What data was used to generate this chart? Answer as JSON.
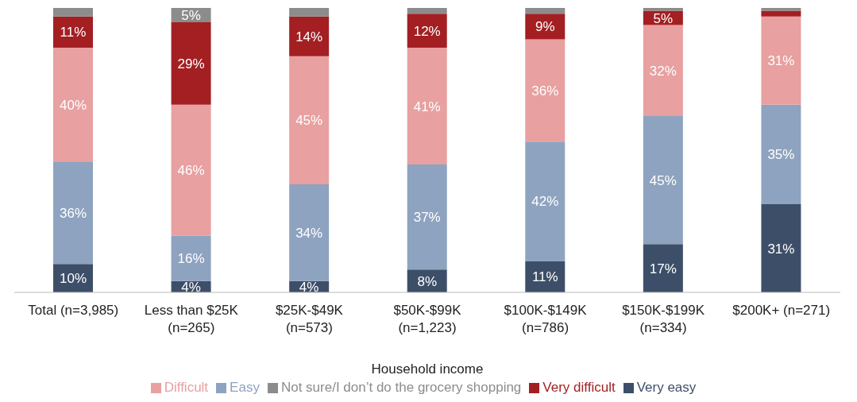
{
  "chart_data": {
    "type": "bar",
    "stacked": true,
    "xlabel": "Household income",
    "categories": [
      "Total (n=3,985)",
      "Less than $25K (n=265)",
      "$25K-$49K (n=573)",
      "$50K-$99K (n=1,223)",
      "$100K-$149K (n=786)",
      "$150K-$199K (n=334)",
      "$200K+ (n=271)"
    ],
    "series": [
      {
        "name": "Very easy",
        "color": "#3d4f68",
        "values": [
          10,
          4,
          4,
          8,
          11,
          17,
          31
        ],
        "value_labels": [
          "10%",
          "4%",
          "4%",
          "8%",
          "11%",
          "17%",
          "31%"
        ]
      },
      {
        "name": "Easy",
        "color": "#8ea3c0",
        "values": [
          36,
          16,
          34,
          37,
          42,
          45,
          35
        ],
        "value_labels": [
          "36%",
          "16%",
          "34%",
          "37%",
          "42%",
          "45%",
          "35%"
        ]
      },
      {
        "name": "Difficult",
        "color": "#e8a0a0",
        "values": [
          40,
          46,
          45,
          41,
          36,
          32,
          31
        ],
        "value_labels": [
          "40%",
          "46%",
          "45%",
          "41%",
          "36%",
          "32%",
          "31%"
        ]
      },
      {
        "name": "Very difficult",
        "color": "#a31f22",
        "values": [
          11,
          29,
          14,
          12,
          9,
          5,
          2
        ],
        "value_labels": [
          "11%",
          "29%",
          "14%",
          "12%",
          "9%",
          "5%",
          null
        ]
      },
      {
        "name": "Not sure/I don’t do the grocery shopping",
        "color": "#8c8c8c",
        "values": [
          3,
          5,
          3,
          2,
          2,
          1,
          1
        ],
        "value_labels": [
          null,
          "5%",
          null,
          null,
          null,
          null,
          null
        ]
      }
    ],
    "legend": "bottom",
    "grid": false
  }
}
